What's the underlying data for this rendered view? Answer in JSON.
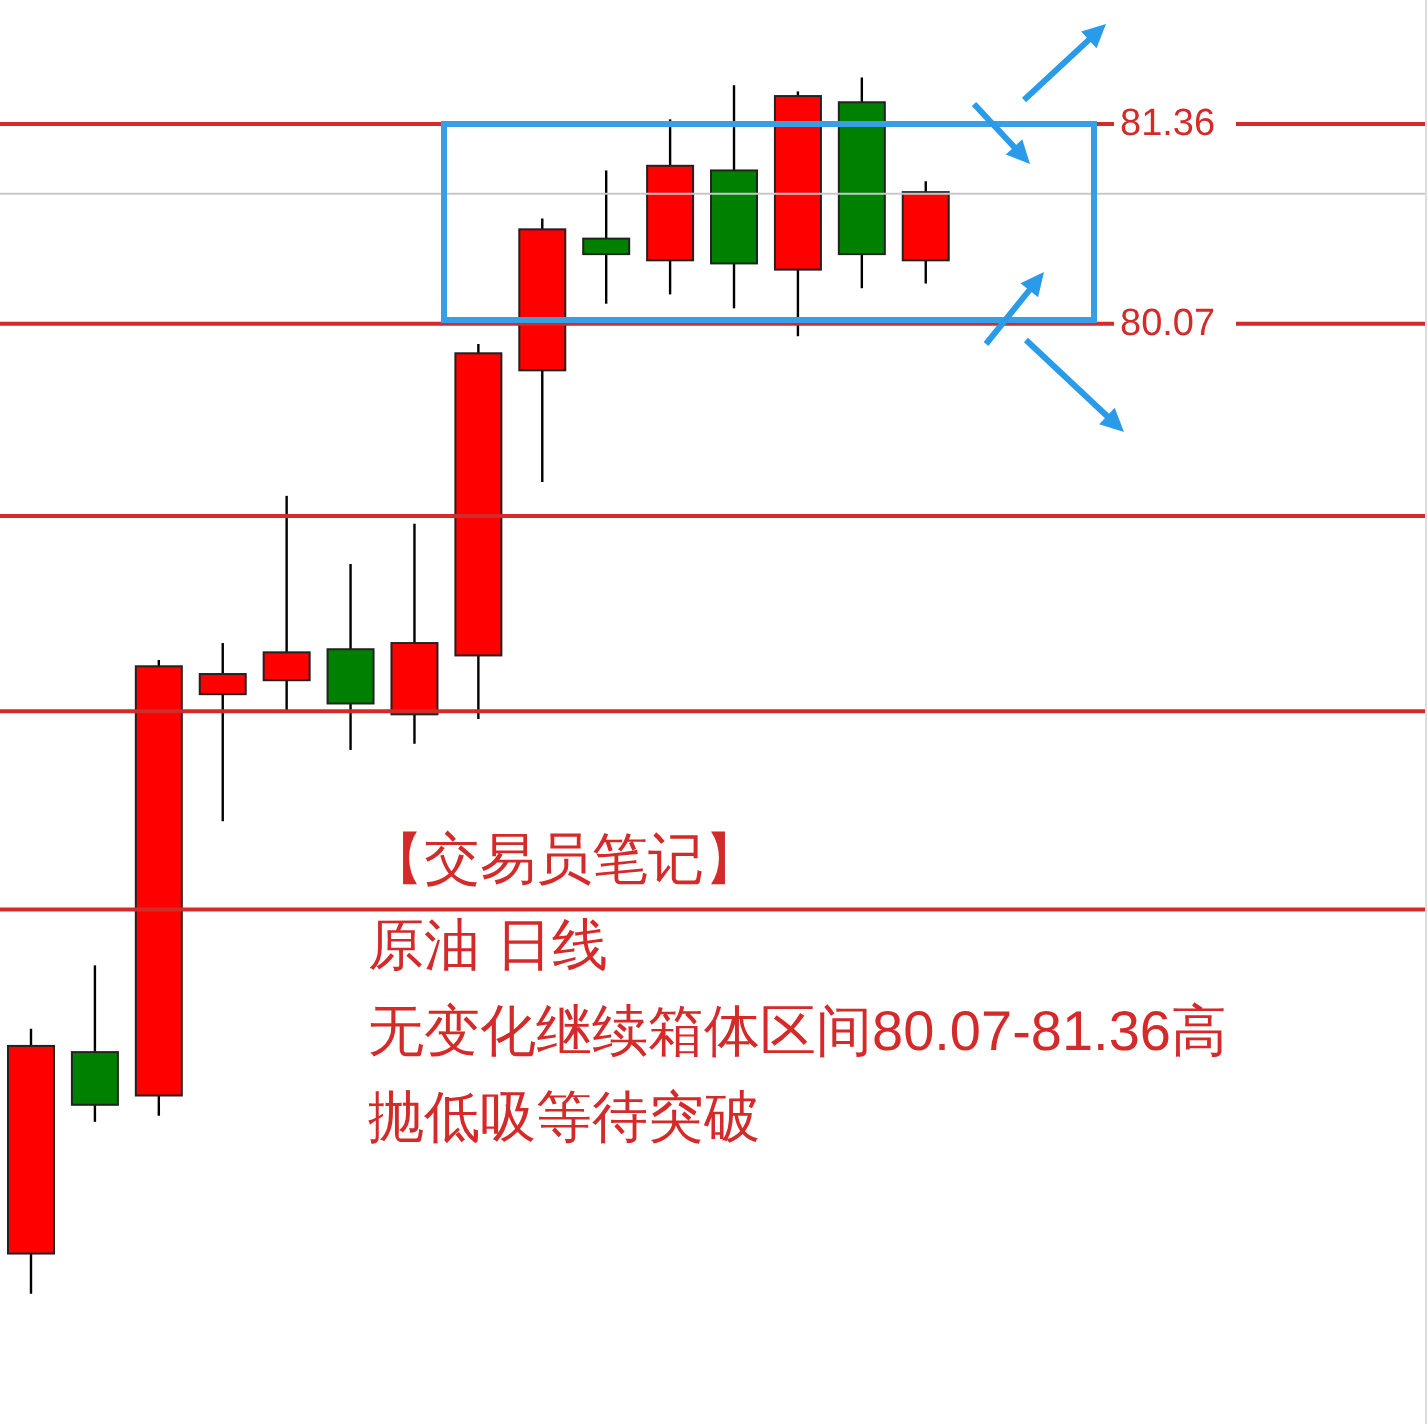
{
  "chart_data": {
    "type": "candlestick",
    "categories": [
      null,
      null,
      null,
      null,
      null,
      null,
      null,
      null,
      null,
      null,
      null,
      null,
      null,
      null,
      null
    ],
    "ohlc": [
      [
        74.07,
        75.52,
        73.81,
        75.41
      ],
      [
        75.37,
        75.93,
        74.92,
        75.03
      ],
      [
        75.09,
        77.9,
        74.96,
        77.86
      ],
      [
        77.68,
        78.01,
        76.86,
        77.81
      ],
      [
        77.77,
        78.96,
        77.57,
        77.95
      ],
      [
        77.97,
        78.52,
        77.32,
        77.62
      ],
      [
        77.55,
        78.78,
        77.36,
        78.01
      ],
      [
        77.93,
        79.94,
        77.52,
        79.88
      ],
      [
        79.77,
        80.75,
        79.05,
        80.68
      ],
      [
        80.62,
        81.06,
        80.2,
        80.52
      ],
      [
        80.48,
        81.39,
        80.26,
        81.09
      ],
      [
        81.06,
        81.61,
        80.17,
        80.46
      ],
      [
        80.42,
        81.57,
        79.99,
        81.54
      ],
      [
        81.5,
        81.66,
        80.3,
        80.52
      ],
      [
        80.48,
        80.99,
        80.33,
        80.92
      ]
    ],
    "colors": [
      "#ff0000",
      "#008000",
      "#ff0000",
      "#ff0000",
      "#ff0000",
      "#008000",
      "#ff0000",
      "#ff0000",
      "#ff0000",
      "#008000",
      "#ff0000",
      "#008000",
      "#ff0000",
      "#008000",
      "#ff0000"
    ],
    "ylim": [
      72.97,
      82.16
    ],
    "yticks": [
      80.07,
      81.36
    ],
    "tick_labels": "y",
    "ref_lines": [
      {
        "axis": "y",
        "value": 81.36,
        "label": null,
        "color": "#d42a2a"
      },
      {
        "axis": "y",
        "value": 80.07,
        "label": null,
        "color": "#d42a2a"
      },
      {
        "axis": "y",
        "value": 80.91,
        "label": null,
        "color": "#c8c8c8"
      },
      {
        "axis": "y",
        "value": 78.83,
        "label": null,
        "color": "#d42a2a"
      },
      {
        "axis": "y",
        "value": 77.57,
        "label": null,
        "color": "#d42a2a"
      },
      {
        "axis": "y",
        "value": 76.29,
        "label": null,
        "color": "#d42a2a"
      }
    ],
    "annotations": [
      "【交易员笔记】",
      "原油 日线",
      "无变化继续箱体区间80.07-81.36高",
      "抛低吸等待突破"
    ]
  }
}
